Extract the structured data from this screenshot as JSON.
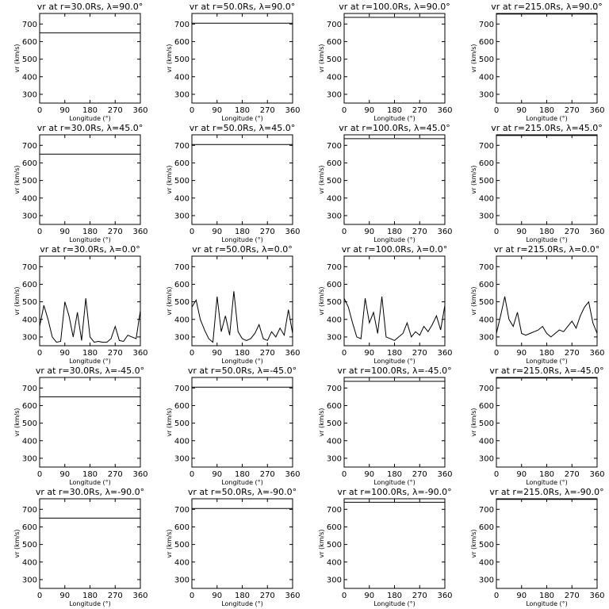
{
  "chart_data": [
    {
      "type": "line",
      "title": "vr at r=30.0Rs,  λ=90.0°",
      "xlabel": "Longitude (°)",
      "ylabel": "vr (km/s)",
      "x": [
        0,
        360
      ],
      "values": [
        650,
        650
      ],
      "color": "#000000",
      "xlim": [
        0,
        360
      ],
      "ylim": [
        250,
        760
      ],
      "xticks": [
        0,
        90,
        180,
        270,
        360
      ],
      "yticks": [
        300,
        400,
        500,
        600,
        700
      ]
    },
    {
      "type": "line",
      "title": "vr at r=50.0Rs,  λ=90.0°",
      "xlabel": "Longitude (°)",
      "ylabel": "vr (km/s)",
      "x": [
        0,
        360
      ],
      "values": [
        705,
        705
      ],
      "color": "#000000",
      "xlim": [
        0,
        360
      ],
      "ylim": [
        250,
        760
      ],
      "xticks": [
        0,
        90,
        180,
        270,
        360
      ],
      "yticks": [
        300,
        400,
        500,
        600,
        700
      ]
    },
    {
      "type": "line",
      "title": "vr at r=100.0Rs,  λ=90.0°",
      "xlabel": "Longitude (°)",
      "ylabel": "vr (km/s)",
      "x": [
        0,
        360
      ],
      "values": [
        738,
        738
      ],
      "color": "#000000",
      "xlim": [
        0,
        360
      ],
      "ylim": [
        250,
        760
      ],
      "xticks": [
        0,
        90,
        180,
        270,
        360
      ],
      "yticks": [
        300,
        400,
        500,
        600,
        700
      ]
    },
    {
      "type": "line",
      "title": "vr at r=215.0Rs,  λ=90.0°",
      "xlabel": "Longitude (°)",
      "ylabel": "vr (km/s)",
      "x": [
        0,
        360
      ],
      "values": [
        757,
        757
      ],
      "color": "#000000",
      "xlim": [
        0,
        360
      ],
      "ylim": [
        250,
        760
      ],
      "xticks": [
        0,
        90,
        180,
        270,
        360
      ],
      "yticks": [
        300,
        400,
        500,
        600,
        700
      ]
    },
    {
      "type": "line",
      "title": "vr at r=30.0Rs,  λ=45.0°",
      "xlabel": "Longitude (°)",
      "ylabel": "vr (km/s)",
      "x": [
        0,
        360
      ],
      "values": [
        650,
        650
      ],
      "color": "#000000",
      "xlim": [
        0,
        360
      ],
      "ylim": [
        250,
        760
      ],
      "xticks": [
        0,
        90,
        180,
        270,
        360
      ],
      "yticks": [
        300,
        400,
        500,
        600,
        700
      ]
    },
    {
      "type": "line",
      "title": "vr at r=50.0Rs,  λ=45.0°",
      "xlabel": "Longitude (°)",
      "ylabel": "vr (km/s)",
      "x": [
        0,
        360
      ],
      "values": [
        705,
        705
      ],
      "color": "#000000",
      "xlim": [
        0,
        360
      ],
      "ylim": [
        250,
        760
      ],
      "xticks": [
        0,
        90,
        180,
        270,
        360
      ],
      "yticks": [
        300,
        400,
        500,
        600,
        700
      ]
    },
    {
      "type": "line",
      "title": "vr at r=100.0Rs,  λ=45.0°",
      "xlabel": "Longitude (°)",
      "ylabel": "vr (km/s)",
      "x": [
        0,
        360
      ],
      "values": [
        738,
        738
      ],
      "color": "#000000",
      "xlim": [
        0,
        360
      ],
      "ylim": [
        250,
        760
      ],
      "xticks": [
        0,
        90,
        180,
        270,
        360
      ],
      "yticks": [
        300,
        400,
        500,
        600,
        700
      ]
    },
    {
      "type": "line",
      "title": "vr at r=215.0Rs,  λ=45.0°",
      "xlabel": "Longitude (°)",
      "ylabel": "vr (km/s)",
      "x": [
        0,
        360
      ],
      "values": [
        756,
        756
      ],
      "color": "#000000",
      "xlim": [
        0,
        360
      ],
      "ylim": [
        250,
        760
      ],
      "xticks": [
        0,
        90,
        180,
        270,
        360
      ],
      "yticks": [
        300,
        400,
        500,
        600,
        700
      ]
    },
    {
      "type": "line",
      "title": "vr at r=30.0Rs,  λ=0.0°",
      "xlabel": "Longitude (°)",
      "ylabel": "vr (km/s)",
      "x": [
        0,
        15,
        30,
        45,
        60,
        75,
        90,
        105,
        120,
        135,
        150,
        165,
        180,
        195,
        210,
        225,
        240,
        255,
        270,
        285,
        300,
        315,
        330,
        345,
        360
      ],
      "values": [
        360,
        480,
        400,
        300,
        270,
        275,
        500,
        420,
        300,
        440,
        280,
        520,
        300,
        270,
        275,
        270,
        270,
        290,
        360,
        280,
        275,
        310,
        300,
        290,
        450
      ],
      "color": "#000000",
      "xlim": [
        0,
        360
      ],
      "ylim": [
        250,
        760
      ],
      "xticks": [
        0,
        90,
        180,
        270,
        360
      ],
      "yticks": [
        300,
        400,
        500,
        600,
        700
      ]
    },
    {
      "type": "line",
      "title": "vr at r=50.0Rs,  λ=0.0°",
      "xlabel": "Longitude (°)",
      "ylabel": "vr (km/s)",
      "x": [
        0,
        15,
        30,
        45,
        60,
        75,
        90,
        105,
        120,
        135,
        150,
        165,
        180,
        195,
        210,
        225,
        240,
        255,
        270,
        285,
        300,
        315,
        330,
        345,
        360
      ],
      "values": [
        470,
        510,
        400,
        340,
        290,
        270,
        530,
        330,
        420,
        310,
        560,
        330,
        290,
        280,
        290,
        320,
        370,
        290,
        280,
        330,
        300,
        350,
        310,
        455,
        320
      ],
      "color": "#000000",
      "xlim": [
        0,
        360
      ],
      "ylim": [
        250,
        760
      ],
      "xticks": [
        0,
        90,
        180,
        270,
        360
      ],
      "yticks": [
        300,
        400,
        500,
        600,
        700
      ]
    },
    {
      "type": "line",
      "title": "vr at r=100.0Rs,  λ=0.0°",
      "xlabel": "Longitude (°)",
      "ylabel": "vr (km/s)",
      "x": [
        0,
        15,
        30,
        45,
        60,
        75,
        90,
        105,
        120,
        135,
        150,
        165,
        180,
        195,
        210,
        225,
        240,
        255,
        270,
        285,
        300,
        315,
        330,
        345,
        360
      ],
      "values": [
        520,
        470,
        380,
        300,
        290,
        520,
        380,
        440,
        320,
        530,
        300,
        290,
        280,
        300,
        320,
        380,
        300,
        330,
        310,
        360,
        330,
        370,
        420,
        340,
        480
      ],
      "color": "#000000",
      "xlim": [
        0,
        360
      ],
      "ylim": [
        250,
        760
      ],
      "xticks": [
        0,
        90,
        180,
        270,
        360
      ],
      "yticks": [
        300,
        400,
        500,
        600,
        700
      ]
    },
    {
      "type": "line",
      "title": "vr at r=215.0Rs,  λ=0.0°",
      "xlabel": "Longitude (°)",
      "ylabel": "vr (km/s)",
      "x": [
        0,
        15,
        30,
        45,
        60,
        75,
        90,
        105,
        120,
        135,
        150,
        165,
        180,
        195,
        210,
        225,
        240,
        255,
        270,
        285,
        300,
        315,
        330,
        345,
        360
      ],
      "values": [
        320,
        420,
        530,
        400,
        360,
        440,
        320,
        310,
        320,
        330,
        340,
        360,
        320,
        300,
        320,
        340,
        330,
        360,
        390,
        350,
        420,
        470,
        500,
        380,
        320
      ],
      "color": "#000000",
      "xlim": [
        0,
        360
      ],
      "ylim": [
        250,
        760
      ],
      "xticks": [
        0,
        90,
        180,
        270,
        360
      ],
      "yticks": [
        300,
        400,
        500,
        600,
        700
      ]
    },
    {
      "type": "line",
      "title": "vr at r=30.0Rs,  λ=-45.0°",
      "xlabel": "Longitude (°)",
      "ylabel": "vr (km/s)",
      "x": [
        0,
        360
      ],
      "values": [
        650,
        650
      ],
      "color": "#000000",
      "xlim": [
        0,
        360
      ],
      "ylim": [
        250,
        760
      ],
      "xticks": [
        0,
        90,
        180,
        270,
        360
      ],
      "yticks": [
        300,
        400,
        500,
        600,
        700
      ]
    },
    {
      "type": "line",
      "title": "vr at r=50.0Rs,  λ=-45.0°",
      "xlabel": "Longitude (°)",
      "ylabel": "vr (km/s)",
      "x": [
        0,
        360
      ],
      "values": [
        705,
        705
      ],
      "color": "#000000",
      "xlim": [
        0,
        360
      ],
      "ylim": [
        250,
        760
      ],
      "xticks": [
        0,
        90,
        180,
        270,
        360
      ],
      "yticks": [
        300,
        400,
        500,
        600,
        700
      ]
    },
    {
      "type": "line",
      "title": "vr at r=100.0Rs,  λ=-45.0°",
      "xlabel": "Longitude (°)",
      "ylabel": "vr (km/s)",
      "x": [
        0,
        360
      ],
      "values": [
        738,
        738
      ],
      "color": "#000000",
      "xlim": [
        0,
        360
      ],
      "ylim": [
        250,
        760
      ],
      "xticks": [
        0,
        90,
        180,
        270,
        360
      ],
      "yticks": [
        300,
        400,
        500,
        600,
        700
      ]
    },
    {
      "type": "line",
      "title": "vr at r=215.0Rs,  λ=-45.0°",
      "xlabel": "Longitude (°)",
      "ylabel": "vr (km/s)",
      "x": [
        0,
        360
      ],
      "values": [
        757,
        757
      ],
      "color": "#000000",
      "xlim": [
        0,
        360
      ],
      "ylim": [
        250,
        760
      ],
      "xticks": [
        0,
        90,
        180,
        270,
        360
      ],
      "yticks": [
        300,
        400,
        500,
        600,
        700
      ]
    },
    {
      "type": "line",
      "title": "vr at r=30.0Rs,  λ=-90.0°",
      "xlabel": "Longitude (°)",
      "ylabel": "vr (km/s)",
      "x": [
        0,
        360
      ],
      "values": [
        650,
        650
      ],
      "color": "#000000",
      "xlim": [
        0,
        360
      ],
      "ylim": [
        250,
        760
      ],
      "xticks": [
        0,
        90,
        180,
        270,
        360
      ],
      "yticks": [
        300,
        400,
        500,
        600,
        700
      ]
    },
    {
      "type": "line",
      "title": "vr at r=50.0Rs,  λ=-90.0°",
      "xlabel": "Longitude (°)",
      "ylabel": "vr (km/s)",
      "x": [
        0,
        360
      ],
      "values": [
        705,
        705
      ],
      "color": "#000000",
      "xlim": [
        0,
        360
      ],
      "ylim": [
        250,
        760
      ],
      "xticks": [
        0,
        90,
        180,
        270,
        360
      ],
      "yticks": [
        300,
        400,
        500,
        600,
        700
      ]
    },
    {
      "type": "line",
      "title": "vr at r=100.0Rs,  λ=-90.0°",
      "xlabel": "Longitude (°)",
      "ylabel": "vr (km/s)",
      "x": [
        0,
        360
      ],
      "values": [
        740,
        740
      ],
      "color": "#000000",
      "xlim": [
        0,
        360
      ],
      "ylim": [
        250,
        760
      ],
      "xticks": [
        0,
        90,
        180,
        270,
        360
      ],
      "yticks": [
        300,
        400,
        500,
        600,
        700
      ]
    },
    {
      "type": "line",
      "title": "vr at r=215.0Rs,  λ=-90.0°",
      "xlabel": "Longitude (°)",
      "ylabel": "vr (km/s)",
      "x": [
        0,
        360
      ],
      "values": [
        757,
        757
      ],
      "color": "#000000",
      "xlim": [
        0,
        360
      ],
      "ylim": [
        250,
        760
      ],
      "xticks": [
        0,
        90,
        180,
        270,
        360
      ],
      "yticks": [
        300,
        400,
        500,
        600,
        700
      ]
    }
  ]
}
